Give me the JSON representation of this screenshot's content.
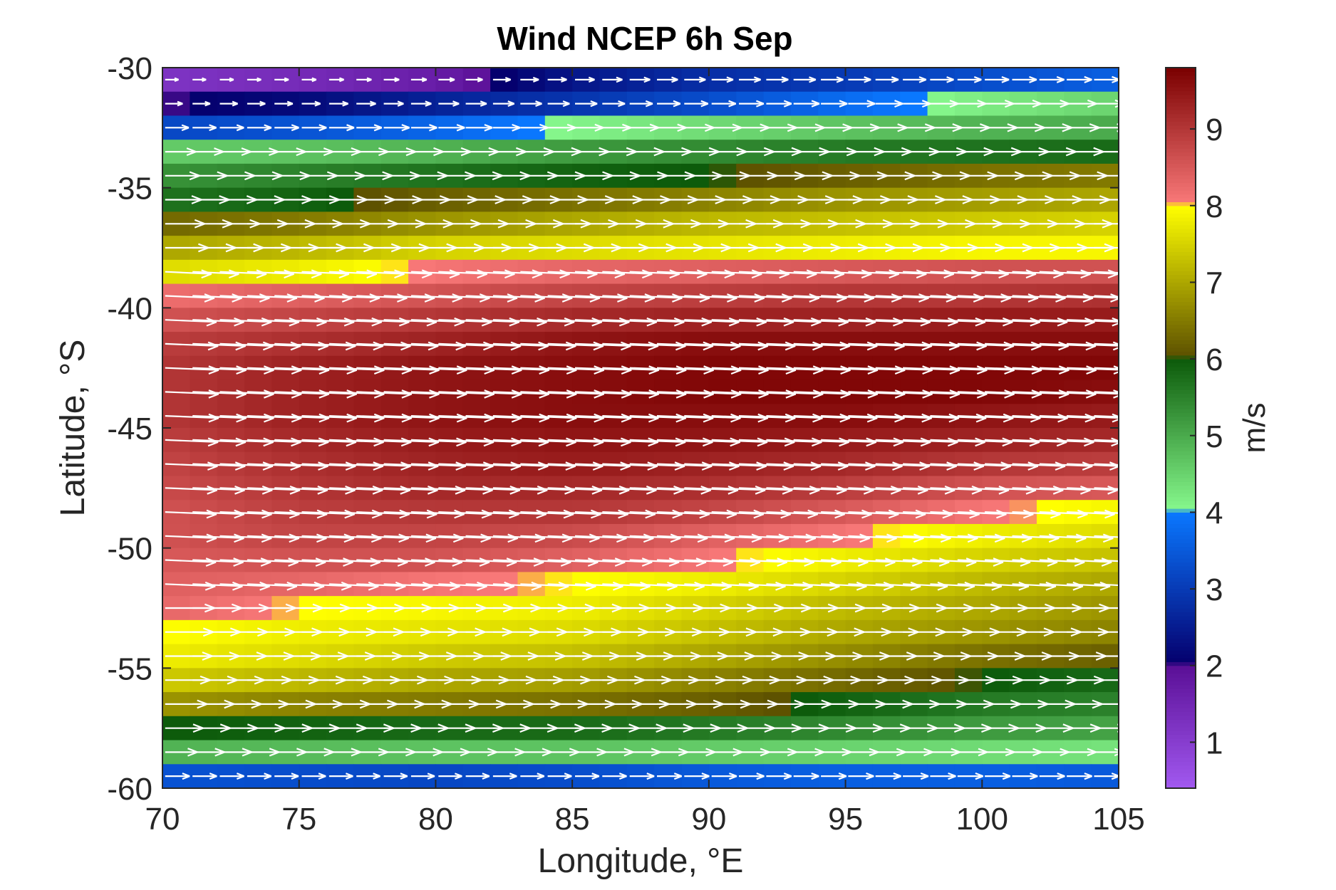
{
  "chart_data": {
    "type": "heatmap",
    "title": "Wind NCEP 6h Sep",
    "xlabel": "Longitude, °E",
    "ylabel": "Latitude, °S",
    "colorbar_label": "m/s",
    "xlim": [
      70,
      105
    ],
    "ylim": [
      -60,
      -30
    ],
    "x_ticks": [
      70,
      75,
      80,
      85,
      90,
      95,
      100,
      105
    ],
    "x_tick_labels": [
      "70",
      "75",
      "80",
      "85",
      "90",
      "95",
      "100",
      "105"
    ],
    "y_ticks": [
      -30,
      -35,
      -40,
      -45,
      -50,
      -55,
      -60
    ],
    "y_tick_labels": [
      "-30",
      "-35",
      "-40",
      "-45",
      "-50",
      "-55",
      "-60"
    ],
    "colorbar_range": [
      0.4,
      9.8
    ],
    "colorbar_ticks": [
      1,
      2,
      3,
      4,
      5,
      6,
      7,
      8,
      9
    ],
    "colorbar_tick_labels": [
      "1",
      "2",
      "3",
      "4",
      "5",
      "6",
      "7",
      "8",
      "9"
    ],
    "colormap": [
      {
        "value": 0.4,
        "color": "#a259f0"
      },
      {
        "value": 2.0,
        "color": "#5a0f96"
      },
      {
        "value": 2.05,
        "color": "#05006e"
      },
      {
        "value": 4.0,
        "color": "#0a78ff"
      },
      {
        "value": 4.05,
        "color": "#86f78c"
      },
      {
        "value": 6.0,
        "color": "#0c5a0a"
      },
      {
        "value": 6.05,
        "color": "#5e5200"
      },
      {
        "value": 8.0,
        "color": "#ffff00"
      },
      {
        "value": 8.05,
        "color": "#f87878"
      },
      {
        "value": 9.8,
        "color": "#7a0000"
      }
    ],
    "grid": false,
    "wind_vector_color": "#ffffff",
    "wind_direction": "westerly (eastward), slight southward tilt near -40 to -50",
    "lat": [
      -30.5,
      -31.5,
      -32.5,
      -33.5,
      -34.5,
      -35.5,
      -36.5,
      -37.5,
      -38.5,
      -39.5,
      -40.5,
      -41.5,
      -42.5,
      -43.5,
      -44.5,
      -45.5,
      -46.5,
      -47.5,
      -48.5,
      -49.5,
      -50.5,
      -51.5,
      -52.5,
      -53.5,
      -54.5,
      -55.5,
      -56.5,
      -57.5,
      -58.5,
      -59.5
    ],
    "lon_nodes": [
      70,
      75,
      80,
      85,
      90,
      95,
      100,
      105
    ],
    "speed": [
      [
        1.2,
        1.4,
        1.7,
        2.4,
        2.8,
        3.0,
        3.3,
        3.6
      ],
      [
        2.0,
        2.2,
        2.6,
        2.9,
        3.3,
        3.8,
        4.2,
        4.5
      ],
      [
        3.2,
        3.4,
        3.7,
        4.1,
        4.4,
        4.7,
        4.9,
        5.0
      ],
      [
        4.6,
        4.7,
        4.9,
        5.2,
        5.4,
        5.6,
        5.7,
        5.8
      ],
      [
        5.3,
        5.5,
        5.7,
        5.9,
        6.0,
        6.2,
        6.4,
        6.5
      ],
      [
        5.7,
        5.9,
        6.2,
        6.4,
        6.6,
        6.8,
        6.9,
        7.0
      ],
      [
        6.3,
        6.5,
        6.8,
        7.0,
        7.2,
        7.3,
        7.4,
        7.5
      ],
      [
        7.0,
        7.2,
        7.5,
        7.6,
        7.7,
        7.8,
        7.9,
        7.9
      ],
      [
        7.6,
        7.8,
        8.1,
        8.3,
        8.4,
        8.5,
        8.6,
        8.6
      ],
      [
        8.2,
        8.4,
        8.6,
        8.8,
        8.9,
        9.0,
        9.0,
        9.1
      ],
      [
        8.6,
        8.8,
        9.0,
        9.2,
        9.3,
        9.3,
        9.4,
        9.4
      ],
      [
        8.9,
        9.1,
        9.3,
        9.5,
        9.6,
        9.6,
        9.6,
        9.6
      ],
      [
        9.0,
        9.3,
        9.5,
        9.6,
        9.7,
        9.7,
        9.7,
        9.7
      ],
      [
        9.0,
        9.3,
        9.5,
        9.6,
        9.7,
        9.7,
        9.7,
        9.6
      ],
      [
        9.0,
        9.3,
        9.5,
        9.6,
        9.6,
        9.6,
        9.5,
        9.4
      ],
      [
        8.9,
        9.2,
        9.4,
        9.5,
        9.5,
        9.4,
        9.3,
        9.2
      ],
      [
        8.8,
        9.1,
        9.3,
        9.4,
        9.3,
        9.2,
        9.0,
        8.9
      ],
      [
        8.7,
        9.0,
        9.2,
        9.2,
        9.1,
        8.9,
        8.6,
        8.5
      ],
      [
        8.6,
        8.9,
        9.0,
        9.0,
        8.8,
        8.5,
        8.1,
        7.9
      ],
      [
        8.6,
        8.8,
        8.8,
        8.7,
        8.4,
        8.1,
        7.8,
        7.6
      ],
      [
        8.5,
        8.6,
        8.6,
        8.4,
        8.1,
        7.8,
        7.5,
        7.3
      ],
      [
        8.4,
        8.3,
        8.1,
        8.0,
        7.8,
        7.5,
        7.2,
        7.0
      ],
      [
        8.3,
        8.0,
        7.9,
        7.8,
        7.5,
        7.2,
        7.0,
        6.8
      ],
      [
        8.0,
        7.8,
        7.7,
        7.6,
        7.3,
        7.0,
        6.8,
        6.6
      ],
      [
        7.8,
        7.6,
        7.4,
        7.3,
        7.0,
        6.7,
        6.4,
        6.2
      ],
      [
        7.4,
        7.2,
        7.0,
        6.9,
        6.6,
        6.3,
        6.0,
        5.8
      ],
      [
        6.8,
        6.6,
        6.5,
        6.4,
        6.2,
        5.9,
        5.6,
        5.5
      ],
      [
        6.0,
        5.9,
        5.8,
        5.8,
        5.6,
        5.4,
        5.2,
        5.1
      ],
      [
        4.9,
        4.8,
        4.7,
        4.7,
        4.6,
        4.5,
        4.4,
        4.3
      ],
      [
        3.4,
        3.3,
        3.2,
        3.3,
        3.5,
        3.6,
        3.6,
        3.5
      ]
    ]
  }
}
